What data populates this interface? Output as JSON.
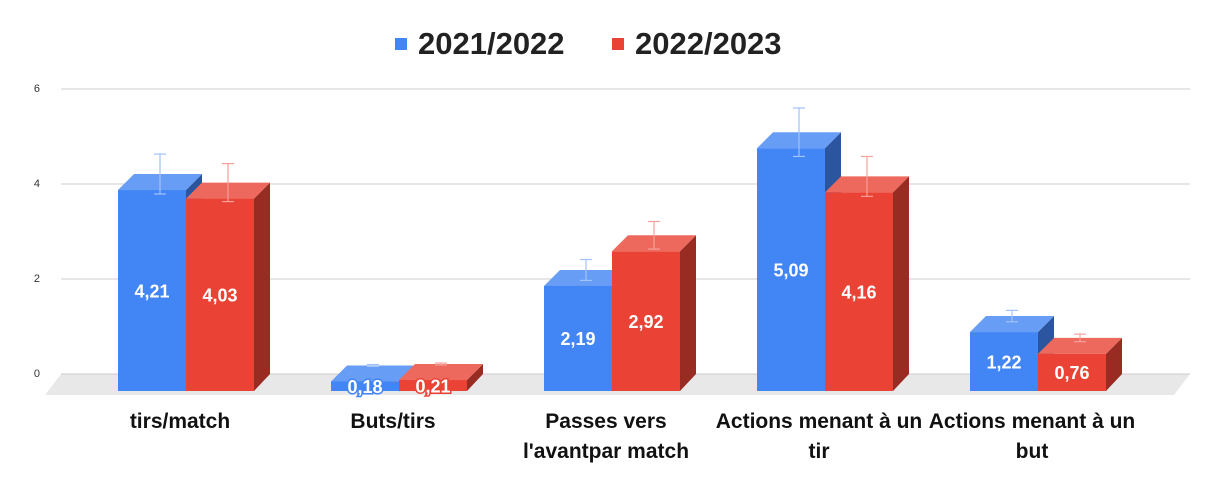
{
  "chart_data": {
    "type": "bar3d",
    "categories": [
      "tirs/match",
      "Buts/tirs",
      "Passes vers l'avantpar match",
      "Actions menant à un tir",
      "Actions menant à un but"
    ],
    "series": [
      {
        "name": "2021/2022",
        "color": "#4285f4",
        "values": [
          4.21,
          0.18,
          2.19,
          5.09,
          1.22
        ],
        "value_labels": [
          "4,21",
          "0,18",
          "2,19",
          "5,09",
          "1,22"
        ],
        "errors": [
          0.42,
          0.02,
          0.22,
          0.51,
          0.12
        ]
      },
      {
        "name": "2022/2023",
        "color": "#ea4335",
        "values": [
          4.03,
          0.21,
          2.92,
          4.16,
          0.76
        ],
        "value_labels": [
          "4,03",
          "0,21",
          "2,92",
          "4,16",
          "0,76"
        ],
        "errors": [
          0.4,
          0.02,
          0.29,
          0.42,
          0.08
        ]
      }
    ],
    "ylim": [
      0,
      6
    ],
    "yticks": [
      0,
      2,
      4,
      6
    ],
    "grid": true,
    "legend": "top"
  }
}
